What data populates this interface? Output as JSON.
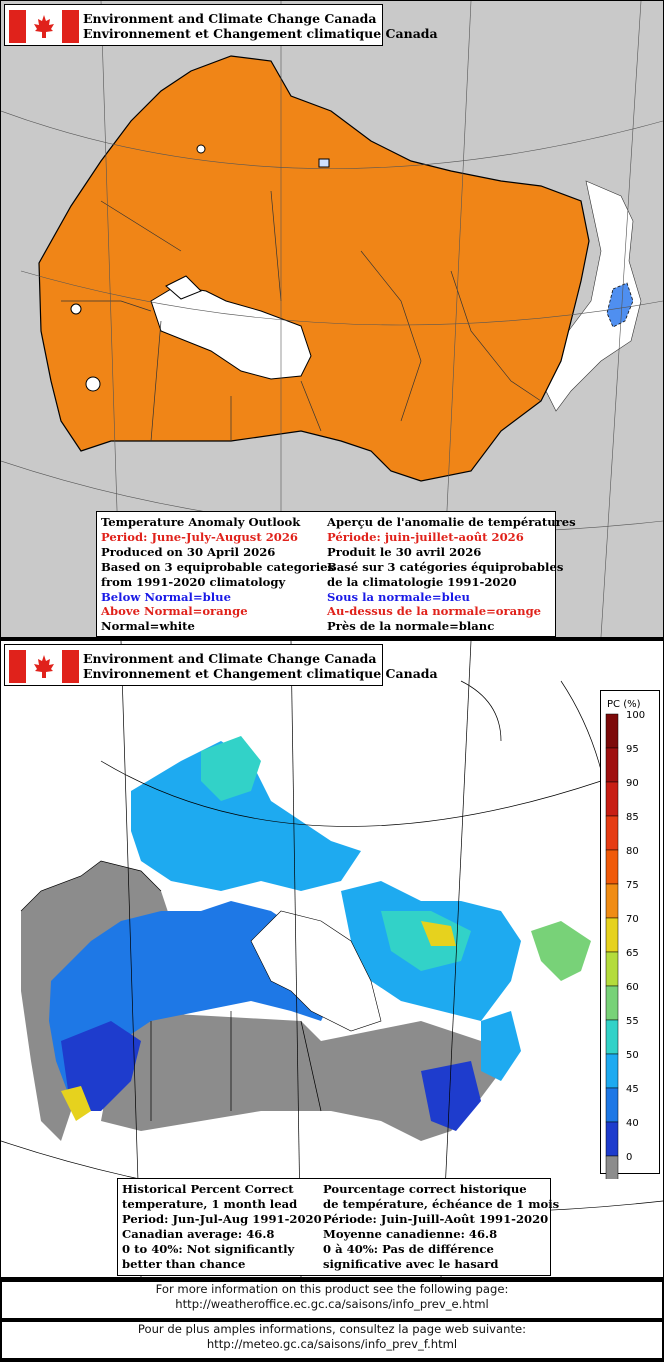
{
  "panel_top": {
    "header": {
      "line1": "Environment and Climate Change Canada",
      "line2": "Environnement et Changement climatique Canada"
    },
    "legend": {
      "en": {
        "title": "Temperature Anomaly Outlook",
        "period": "Period: June-July-August 2026",
        "produced": "Produced on 30 April 2026",
        "based1": "Based on 3 equiprobable categories",
        "based2": "from 1991-2020 climatology",
        "below": "Below Normal=blue",
        "above": "Above Normal=orange",
        "normal": "Normal=white"
      },
      "fr": {
        "title": "Aperçu de l'anomalie de températures",
        "period": "Période: juin-juillet-août 2026",
        "produced": "Produit le 30 avril 2026",
        "based1": "Basé sur 3 catégories équiprobables",
        "based2": "de la climatologie 1991-2020",
        "below": "Sous la normale=bleu",
        "above": "Au-dessus de la normale=orange",
        "normal": "Près de la normale=blanc"
      }
    },
    "colors": {
      "above": "#f08517",
      "normal": "#ffffff",
      "below": "#4f8ff0",
      "outside": "#c9c9c9"
    }
  },
  "panel_bottom": {
    "header": {
      "line1": "Environment and Climate Change Canada",
      "line2": "Environnement et Changement climatique Canada"
    },
    "colorbar": {
      "title": "PC (%)",
      "levels": [
        {
          "label": "100",
          "color": "#7d0a0a"
        },
        {
          "label": "95",
          "color": "#a01010"
        },
        {
          "label": "90",
          "color": "#c81e14"
        },
        {
          "label": "85",
          "color": "#e63c14"
        },
        {
          "label": "80",
          "color": "#f05a0a"
        },
        {
          "label": "75",
          "color": "#f08c14"
        },
        {
          "label": "70",
          "color": "#e6d21e"
        },
        {
          "label": "65",
          "color": "#b4dc3c"
        },
        {
          "label": "60",
          "color": "#78d278"
        },
        {
          "label": "55",
          "color": "#32d2c8"
        },
        {
          "label": "50",
          "color": "#1eaaf0"
        },
        {
          "label": "45",
          "color": "#1e78e6"
        },
        {
          "label": "40",
          "color": "#1e3ccd"
        },
        {
          "label": "0",
          "color": "#8c8c8c"
        }
      ]
    },
    "legend": {
      "en": {
        "title": "Historical Percent Correct",
        "l2": "temperature, 1 month lead",
        "period": "Period: Jun-Jul-Aug 1991-2020",
        "avg": "Canadian average: 46.8",
        "sig1": "0 to 40%: Not significantly",
        "sig2": "better than chance"
      },
      "fr": {
        "title": "Pourcentage correct historique",
        "l2": "de température, échéance de 1 mois",
        "period": "Période: Juin-Juill-Août 1991-2020",
        "avg": "Moyenne canadienne: 46.8",
        "sig1": "0 à 40%: Pas de différence",
        "sig2": "significative avec le hasard"
      }
    }
  },
  "info_en": {
    "text": "For more information on this product see the following page:",
    "url": "http://weatheroffice.ec.gc.ca/saisons/info_prev_e.html"
  },
  "info_fr": {
    "text": "Pour de plus amples informations, consultez la page web suivante:",
    "url": "http://meteo.gc.ca/saisons/info_prev_f.html"
  }
}
